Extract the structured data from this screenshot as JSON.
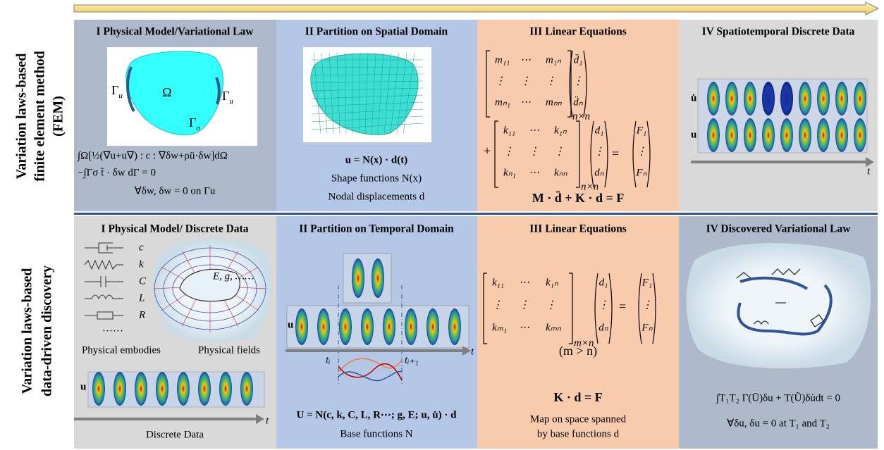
{
  "row_labels": {
    "fem": [
      "Variation laws-based",
      "finite element method",
      "(FEM)"
    ],
    "discovery": [
      "Variation laws-based",
      "data-driven discovery"
    ]
  },
  "fem": {
    "physical_model": {
      "title": "I Physical Model/Variational Law",
      "omega": "Ω",
      "gammas": [
        {
          "main": "Γ",
          "sub": "u"
        },
        {
          "main": "Γ",
          "sub": "u"
        },
        {
          "main": "Γ",
          "sub": "σ"
        }
      ],
      "equations": [
        "∫Ω[½(∇u+u∇) : c : ∇δw+ρü·δw]dΩ",
        "−∫Γσ t̄ · δw dΓ = 0",
        "∀δw,  δw = 0 on Γu"
      ]
    },
    "spatial_partition": {
      "title": "II Partition on Spatial Domain",
      "equations": [
        "u = N(x) · d(t)",
        "Shape functions N(x)",
        "Nodal displacements d"
      ]
    },
    "linear_equations": {
      "title": "III Linear Equations",
      "mass_matrix": [
        [
          "m₁₁",
          "⋯",
          "m₁ₙ"
        ],
        [
          "⋮",
          "⋮",
          "⋮"
        ],
        [
          "mₙ₁",
          "⋯",
          "mₙₙ"
        ]
      ],
      "mass_size": "n×n",
      "acceleration": [
        "d̈₁",
        "⋮",
        "d̈ₙ"
      ],
      "plus": "+",
      "stiffness_matrix": [
        [
          "k₁₁",
          "⋯",
          "k₁ₙ"
        ],
        [
          "⋮",
          "⋮",
          "⋮"
        ],
        [
          "kₙ₁",
          "⋯",
          "kₙₙ"
        ]
      ],
      "stiffness_size": "n×n",
      "displacement": [
        "d₁",
        "⋮",
        "dₙ"
      ],
      "equals": "=",
      "force": [
        "F₁",
        "⋮",
        "Fₙ"
      ],
      "summary": "M · d̈ + K · d = F"
    },
    "discrete_data": {
      "title": "IV Spatiotemporal Discrete Data",
      "row_labels": [
        "u̇",
        "u"
      ],
      "axis_label": "t"
    }
  },
  "discovery": {
    "physical_model": {
      "title": "I Physical Model/ Discrete Data",
      "elements": [
        "c",
        "k",
        "C",
        "L",
        "R"
      ],
      "more": "……",
      "field_label": "E, g, ……",
      "captions": [
        "Physical embodies",
        "Physical fields"
      ],
      "row_label": "u",
      "axis_label": "t",
      "caption": "Discrete Data"
    },
    "temporal_partition": {
      "title": "II Partition on Temporal Domain",
      "row_label": "u",
      "axis_label": "t",
      "t_start": "tᵢ",
      "t_end": "tᵢ₊₁",
      "equation": "U = N(c, k, C, L, R⋯; g, E; u, u̇) · d",
      "caption": "Base functions N"
    },
    "linear_equations": {
      "title": "III Linear Equations",
      "stiffness_matrix": [
        [
          "k₁₁",
          "⋯",
          "k₁ₙ"
        ],
        [
          "⋮",
          "⋮",
          "⋮"
        ],
        [
          "kₘ₁",
          "⋯",
          "kₘₙ"
        ]
      ],
      "stiffness_size": "m×n",
      "displacement": [
        "d₁",
        "⋮",
        "dₙ"
      ],
      "equals": "=",
      "force": [
        "F₁",
        "⋮",
        "Fₙ"
      ],
      "condition": "(m > n)",
      "summary": "K · d = F",
      "caption": [
        "Map on space spanned",
        "by base functions d"
      ]
    },
    "variational_law": {
      "title": "IV Discovered Variational Law",
      "equation": "∫T₁T₂ Γ(Ū)δu + T(Ũ)δu̇dt = 0",
      "condition": "∀δu,  δu = 0 at T₁ and T₂"
    }
  }
}
